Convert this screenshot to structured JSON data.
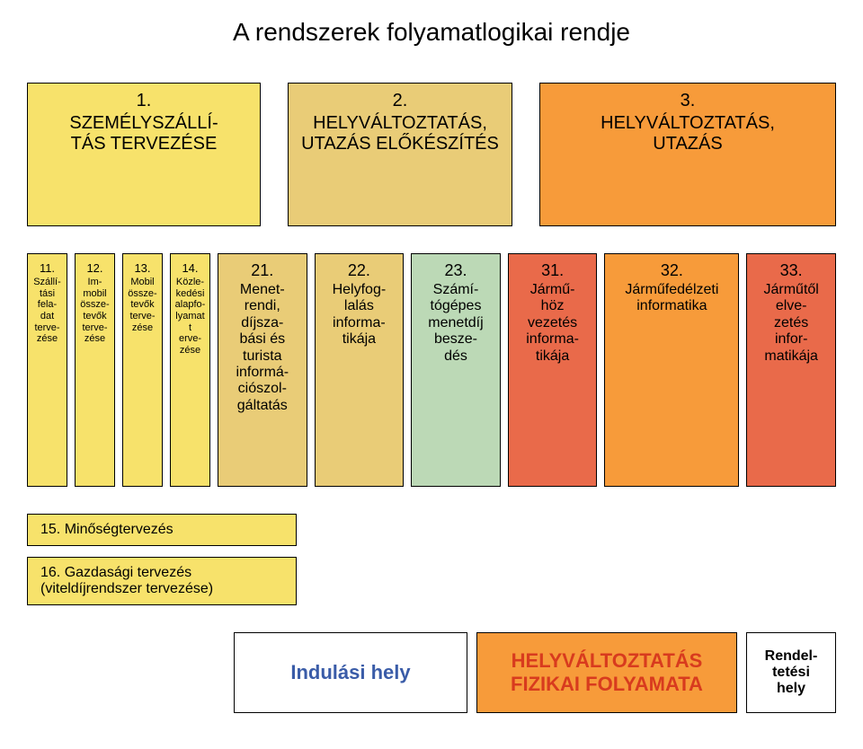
{
  "title": "A rendszerek folyamatlogikai rendje",
  "colors": {
    "yellow": "#f7e26b",
    "tan": "#e9cc77",
    "orange": "#f79b3a",
    "green": "#bcd9b6",
    "red": "#e96a4a",
    "redText": "#d83b1e",
    "blueText": "#3a5ca8",
    "border": "#000000",
    "white": "#ffffff"
  },
  "row1": [
    {
      "num": "1.",
      "label": "SZEMÉLYSZÁLLÍ-\nTÁS TERVEZÉSE",
      "bg": "#f7e26b"
    },
    {
      "num": "2.",
      "label": "HELYVÁLTOZTATÁS,\nUTAZÁS ELŐKÉSZÍTÉS",
      "bg": "#e9cc77"
    },
    {
      "num": "3.",
      "label": "HELYVÁLTOZTATÁS,\nUTAZÁS",
      "bg": "#f79b3a"
    }
  ],
  "row2": [
    {
      "num": "11.",
      "label": "Szállí-\ntási\nfela-\ndat\nterve-\nzése",
      "bg": "#f7e26b",
      "cls": "narrow"
    },
    {
      "num": "12.",
      "label": "Im-\nmobil\nössze-\ntevők\nterve-\nzése",
      "bg": "#f7e26b",
      "cls": "narrow"
    },
    {
      "num": "13.",
      "label": "Mobil\nössze-\ntevők\nterve-\nzése",
      "bg": "#f7e26b",
      "cls": "narrow"
    },
    {
      "num": "14.",
      "label": "Közle-\nkedési\nalapfo-\nlyamatt\nerve-\nzése",
      "bg": "#f7e26b",
      "cls": "narrow"
    },
    {
      "num": "21.",
      "label": "Menet-\nrendi,\ndíjsza-\nbási és\nturista\ninformá-\nciószol-\ngáltatás",
      "bg": "#e9cc77",
      "cls": "med"
    },
    {
      "num": "22.",
      "label": "Helyfog-\nlalás\ninforma-\ntikája",
      "bg": "#e9cc77",
      "cls": "med"
    },
    {
      "num": "23.",
      "label": "Számí-\ntógépes\nmenetdíj\nbesze-\ndés",
      "bg": "#bcd9b6",
      "cls": "med"
    },
    {
      "num": "31.",
      "label": "Jármű-\nhöz\nvezetés\ninforma-\ntikája",
      "bg": "#e96a4a",
      "cls": "med"
    },
    {
      "num": "32.",
      "label": "Járműfedélzeti\ninformatika",
      "bg": "#f79b3a",
      "cls": "med",
      "wide": true
    },
    {
      "num": "33.",
      "label": "Járműtől\nelve-\nzetés\ninfor-\nmatikája",
      "bg": "#e96a4a",
      "cls": "med"
    }
  ],
  "row3": [
    {
      "label": "15. Minőségtervezés",
      "bg": "#f7e26b"
    },
    {
      "label": "16. Gazdasági tervezés\n(viteldíjrendszer tervezése)",
      "bg": "#f7e26b"
    }
  ],
  "bottom": {
    "indulas": {
      "label": "Indulási hely",
      "bg": "#ffffff",
      "color": "#3a5ca8"
    },
    "fizikai": {
      "label": "HELYVÁLTOZTATÁS\nFIZIKAI FOLYAMATA",
      "bg": "#f79b3a",
      "color": "#d83b1e"
    },
    "rendel": {
      "label": "Rendel-\ntetési\nhely",
      "bg": "#ffffff",
      "color": "#000000"
    }
  }
}
